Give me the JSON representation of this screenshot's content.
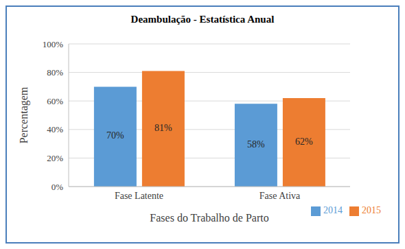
{
  "chart_data": {
    "type": "bar",
    "title": "Deambulação - Estatística Anual",
    "x_label": "Fases do Trabalho de Parto",
    "y_label": "Percentagem",
    "categories": [
      "Fase Latente",
      "Fase Ativa"
    ],
    "series": [
      {
        "name": "2014",
        "color": "#5b9bd5",
        "values": [
          70,
          58
        ],
        "value_labels": [
          "70%",
          "58%"
        ]
      },
      {
        "name": "2015",
        "color": "#ed7d31",
        "values": [
          81,
          62
        ],
        "value_labels": [
          "81%",
          "62%"
        ]
      }
    ],
    "ylim": [
      0,
      100
    ],
    "yticks": [
      {
        "value": 0,
        "label": "0%"
      },
      {
        "value": 20,
        "label": "20%"
      },
      {
        "value": 40,
        "label": "40%"
      },
      {
        "value": 60,
        "label": "60%"
      },
      {
        "value": 80,
        "label": "80%"
      },
      {
        "value": 100,
        "label": "100%"
      }
    ],
    "grid": true,
    "legend": "lower right",
    "data_labels": true
  }
}
